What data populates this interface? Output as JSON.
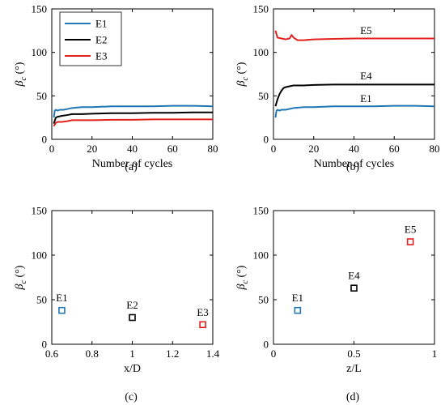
{
  "colors": {
    "E1": "#1f77b4",
    "E2": "#000000",
    "E3": "#e3211c",
    "E4": "#000000",
    "E5": "#e3211c"
  },
  "chart_data": [
    {
      "type": "line",
      "panel": "(a)",
      "xlabel": "Number of cycles",
      "ylabel_main": "β",
      "ylabel_sub": "c",
      "ylabel_unit": " (°)",
      "xlim": [
        0,
        80
      ],
      "ylim": [
        0,
        150
      ],
      "xticks": [
        "0",
        "20",
        "40",
        "60",
        "80"
      ],
      "yticks": [
        "0",
        "50",
        "100",
        "150"
      ],
      "legend": {
        "position": "top-left",
        "entries": [
          "E1",
          "E2",
          "E3"
        ]
      },
      "series": [
        {
          "name": "E1",
          "x": [
            1,
            1.5,
            2,
            3,
            4,
            6,
            8,
            10,
            15,
            20,
            30,
            40,
            50,
            60,
            70,
            80
          ],
          "y": [
            25,
            33,
            34,
            33,
            34,
            34,
            35,
            36,
            37,
            37,
            38,
            38,
            38,
            38.5,
            38.5,
            38
          ]
        },
        {
          "name": "E2",
          "x": [
            1,
            2,
            3,
            5,
            8,
            10,
            15,
            20,
            30,
            40,
            50,
            60,
            70,
            80
          ],
          "y": [
            18,
            25,
            26,
            27,
            28,
            29,
            29,
            29.5,
            30,
            30,
            30.5,
            30.5,
            31,
            31
          ]
        },
        {
          "name": "E3",
          "x": [
            1,
            2,
            3,
            5,
            8,
            10,
            15,
            20,
            30,
            40,
            50,
            60,
            70,
            80
          ],
          "y": [
            15,
            19,
            20,
            20,
            21,
            22,
            22,
            22,
            22.5,
            22.5,
            23,
            23,
            23,
            23
          ]
        }
      ]
    },
    {
      "type": "line",
      "panel": "(b)",
      "xlabel": "Number of cycles",
      "ylabel_main": "β",
      "ylabel_sub": "c",
      "ylabel_unit": " (°)",
      "xlim": [
        0,
        80
      ],
      "ylim": [
        0,
        150
      ],
      "xticks": [
        "0",
        "20",
        "40",
        "60",
        "80"
      ],
      "yticks": [
        "0",
        "50",
        "100",
        "150"
      ],
      "series": [
        {
          "name": "E5",
          "label_pos": [
            46,
            121
          ],
          "x": [
            1,
            2,
            4,
            6,
            8,
            9,
            10,
            12,
            15,
            20,
            30,
            40,
            50,
            60,
            70,
            80
          ],
          "y": [
            125,
            117,
            116,
            115,
            116,
            120,
            117,
            114,
            114,
            115,
            115.5,
            116,
            116,
            116,
            116,
            116
          ]
        },
        {
          "name": "E4",
          "label_pos": [
            46,
            69
          ],
          "x": [
            1,
            2,
            3,
            4,
            5,
            6,
            8,
            10,
            15,
            20,
            30,
            40,
            50,
            60,
            70,
            80
          ],
          "y": [
            38,
            46,
            52,
            56,
            59,
            60,
            61,
            62,
            62,
            62.5,
            63,
            63,
            63,
            63,
            63,
            63
          ]
        },
        {
          "name": "E1",
          "label_pos": [
            46,
            43
          ],
          "x": [
            1,
            1.5,
            2,
            3,
            4,
            6,
            8,
            10,
            15,
            20,
            30,
            40,
            50,
            60,
            70,
            80
          ],
          "y": [
            25,
            33,
            34,
            33,
            34,
            34,
            35,
            36,
            37,
            37,
            38,
            38,
            38,
            38.5,
            38.5,
            38
          ]
        }
      ]
    },
    {
      "type": "scatter",
      "panel": "(c)",
      "xlabel": "x/D",
      "ylabel_main": "β",
      "ylabel_sub": "c",
      "ylabel_unit": " (°)",
      "xlim": [
        0.6,
        1.4
      ],
      "ylim": [
        0,
        150
      ],
      "xticks": [
        "0.6",
        "0.8",
        "1",
        "1.2",
        "1.4"
      ],
      "yticks": [
        "0",
        "50",
        "100",
        "150"
      ],
      "points": [
        {
          "label": "E1",
          "x": 0.65,
          "y": 38
        },
        {
          "label": "E2",
          "x": 1.0,
          "y": 30
        },
        {
          "label": "E3",
          "x": 1.35,
          "y": 22
        }
      ]
    },
    {
      "type": "scatter",
      "panel": "(d)",
      "xlabel": "z/L",
      "ylabel_main": "β",
      "ylabel_sub": "c",
      "ylabel_unit": " (°)",
      "xlim": [
        0,
        1
      ],
      "ylim": [
        0,
        150
      ],
      "xticks": [
        "0",
        "0.5",
        "1"
      ],
      "yticks": [
        "0",
        "50",
        "100",
        "150"
      ],
      "points": [
        {
          "label": "E1",
          "x": 0.15,
          "y": 38
        },
        {
          "label": "E4",
          "x": 0.5,
          "y": 63
        },
        {
          "label": "E5",
          "x": 0.85,
          "y": 115
        }
      ]
    }
  ]
}
